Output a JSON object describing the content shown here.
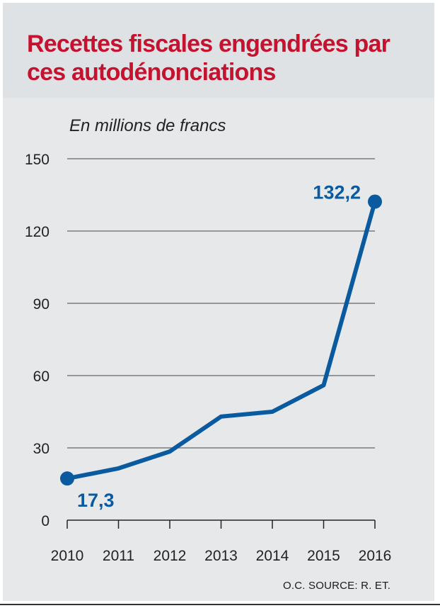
{
  "header": {
    "title": "Recettes fiscales engendrées par ces autodénonciations"
  },
  "footer": {
    "source": "O.C.  SOURCE: R. ET."
  },
  "colors": {
    "line": "#0a5aa0",
    "title": "#c4122f",
    "grid": "#7a7a7a"
  },
  "chart_data": {
    "type": "line",
    "title": "Recettes fiscales engendrées par ces autodénonciations",
    "unit_label": "En millions de francs",
    "xlabel": "",
    "ylabel": "En millions de francs",
    "x": [
      "2010",
      "2011",
      "2012",
      "2013",
      "2014",
      "2015",
      "2016"
    ],
    "series": [
      {
        "name": "Recettes fiscales",
        "values": [
          17.3,
          21.5,
          28.5,
          43,
          45,
          56,
          132.2
        ]
      }
    ],
    "ylim": [
      0,
      150
    ],
    "yticks": [
      "0",
      "30",
      "60",
      "90",
      "120",
      "150"
    ],
    "grid": true,
    "annotations": [
      {
        "index": 0,
        "text": "17,3"
      },
      {
        "index": 6,
        "text": "132,2"
      }
    ]
  }
}
